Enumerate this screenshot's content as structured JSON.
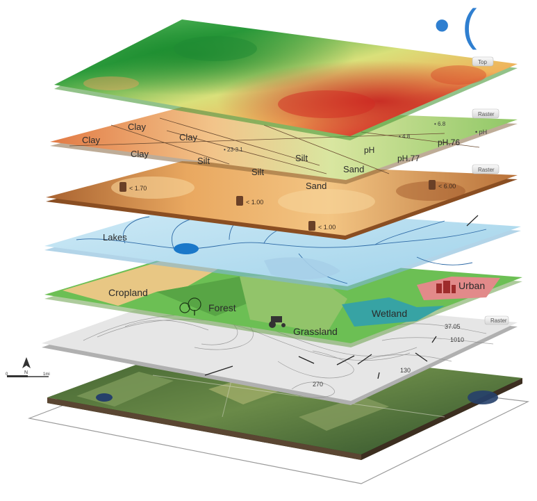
{
  "corner_glyphs": "• (",
  "layers": {
    "top": {
      "tab": "Top"
    },
    "soil": {
      "tab": "Raster",
      "labels": [
        "Clay",
        "Clay",
        "Clay",
        "Clay",
        "Silt",
        "Silt",
        "Silt",
        "Sand",
        "Sand",
        "pH",
        "pH.76",
        "pH.77"
      ],
      "values": [
        "• 23-3.1",
        "• 4.8",
        "• 6.8",
        "• pH"
      ]
    },
    "moisture": {
      "tab": "Raster",
      "values": [
        "< 1.70",
        "< 1.00",
        "< 1.00",
        "< 6.00"
      ]
    },
    "hydro": {
      "label": "Lakes"
    },
    "landcover": {
      "labels": [
        "Cropland",
        "Forest",
        "Grassland",
        "Wetland",
        "Urban"
      ]
    },
    "terrain": {
      "tab": "Raster",
      "values": [
        "37.05",
        "1010",
        "130",
        "270"
      ]
    },
    "scale_bar": {
      "north": "N",
      "left": "0",
      "right": "1mi"
    }
  },
  "colors": {
    "heat_green": "#2e9e3e",
    "heat_yellow": "#e8e06a",
    "heat_red": "#d8312a",
    "soil_orange": "#e08a55",
    "soil_green": "#9dcf74",
    "moisture_brown": "#b5773c",
    "water_blue": "#a9d8ee",
    "landcover_green": "#6cbf54",
    "terrain_gray": "#dcdcdc",
    "satellite_green": "#4f6f3a"
  }
}
